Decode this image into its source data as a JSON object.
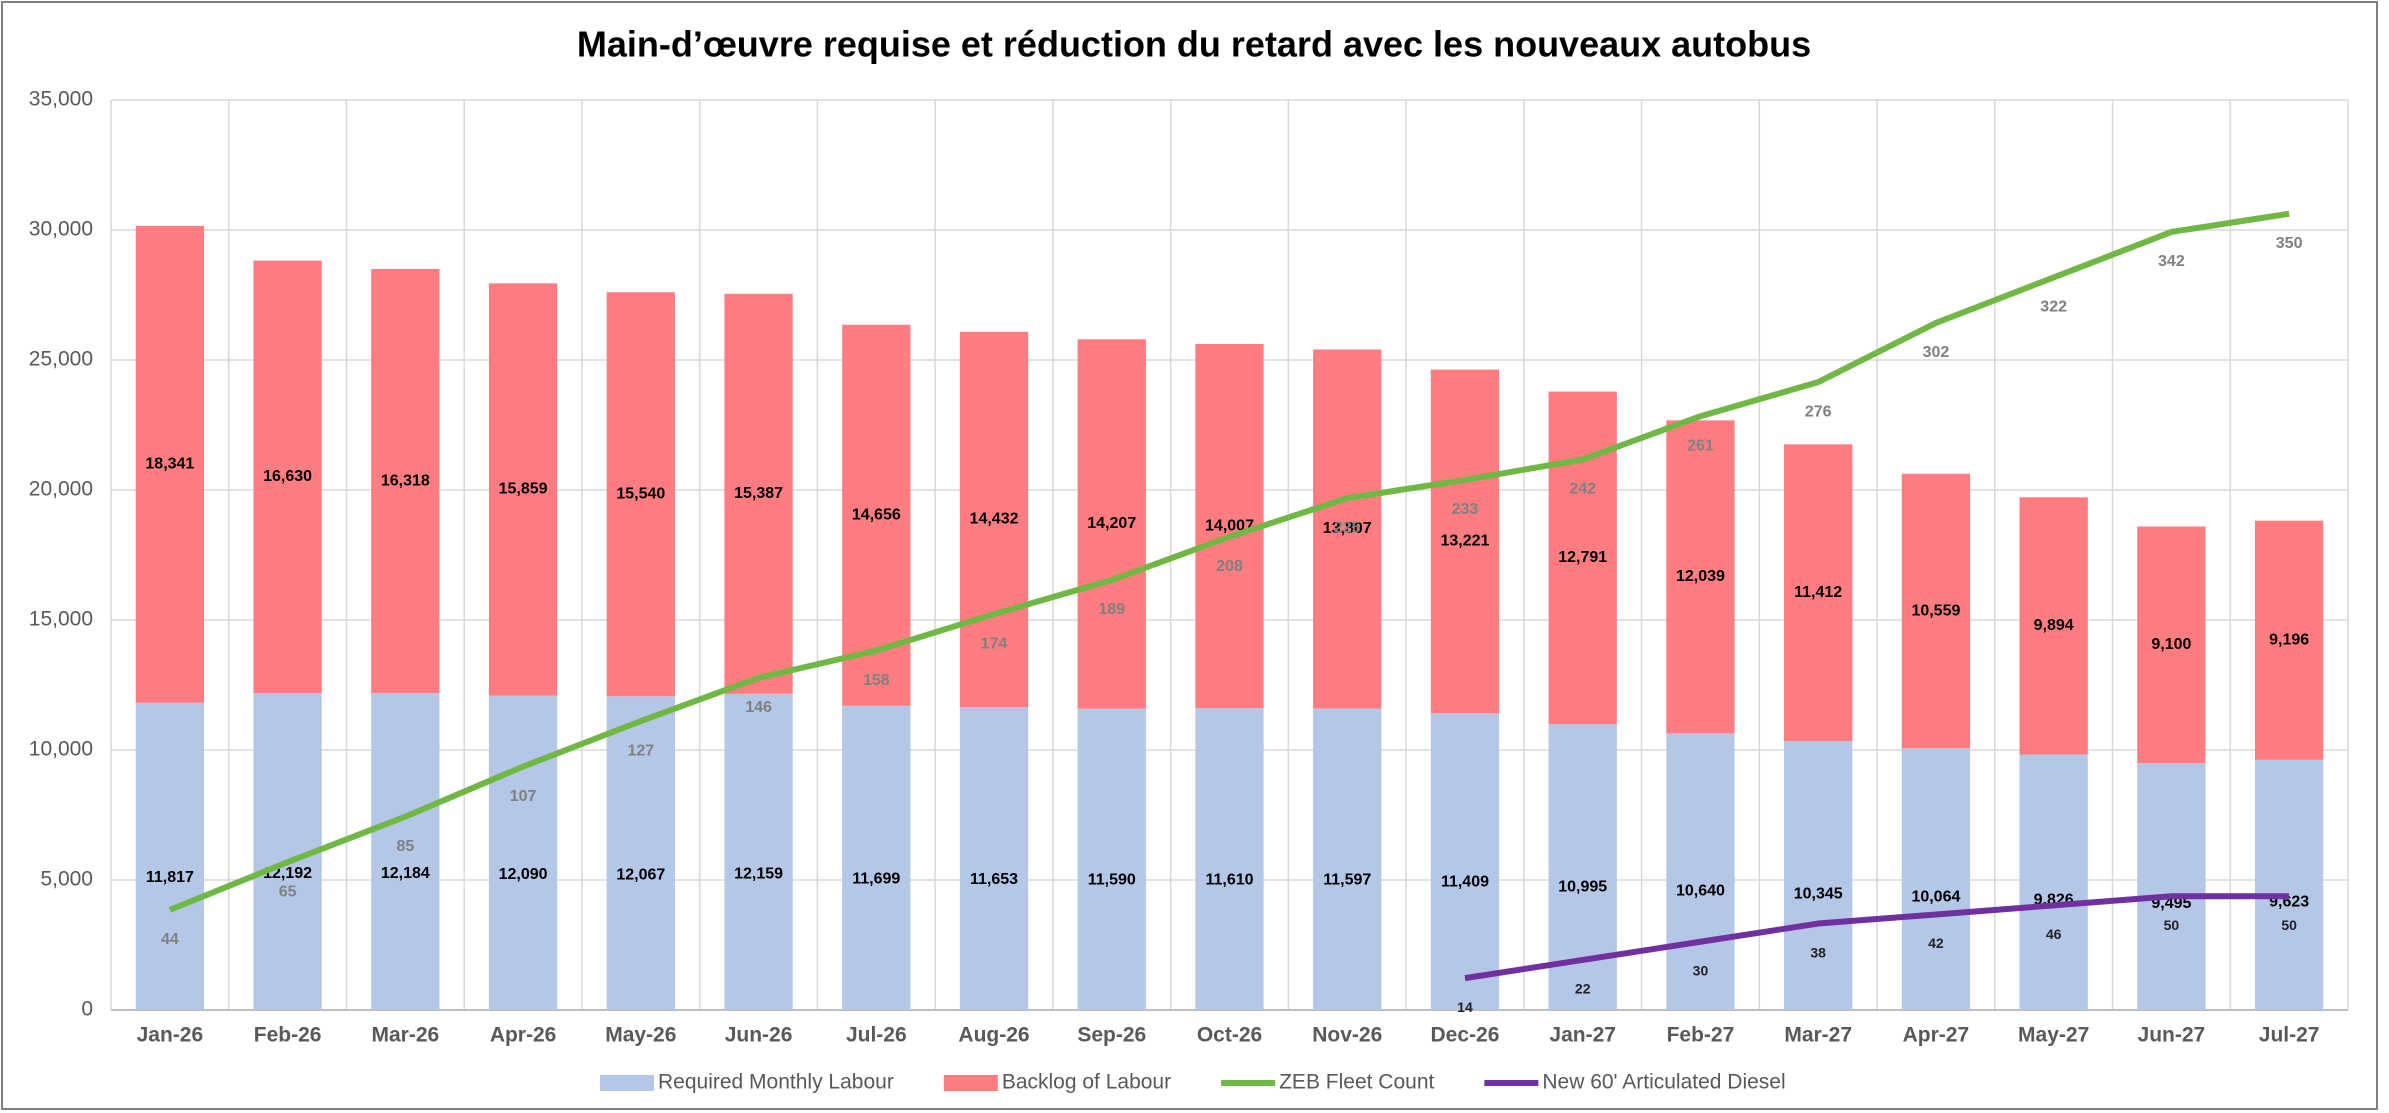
{
  "chart_data": {
    "type": "stacked-bar-line",
    "title": "Main-d’œuvre requise et réduction du retard avec les nouveaux autobus",
    "categories": [
      "Jan-26",
      "Feb-26",
      "Mar-26",
      "Apr-26",
      "May-26",
      "Jun-26",
      "Jul-26",
      "Aug-26",
      "Sep-26",
      "Oct-26",
      "Nov-26",
      "Dec-26",
      "Jan-27",
      "Feb-27",
      "Mar-27",
      "Apr-27",
      "May-27",
      "Jun-27",
      "Jul-27"
    ],
    "series": [
      {
        "name": "Required Monthly Labour",
        "type": "bar",
        "color": "#b4c7e7",
        "values": [
          11817,
          12192,
          12184,
          12090,
          12067,
          12159,
          11699,
          11653,
          11590,
          11610,
          11597,
          11409,
          10995,
          10640,
          10345,
          10064,
          9826,
          9495,
          9623
        ],
        "value_labels": [
          "11,817",
          "12,192",
          "12,184",
          "12,090",
          "12,067",
          "12,159",
          "11,699",
          "11,653",
          "11,590",
          "11,610",
          "11,597",
          "11,409",
          "10,995",
          "10,640",
          "10,345",
          "10,064",
          "9,826",
          "9,495",
          "9,623"
        ]
      },
      {
        "name": "Backlog of Labour",
        "type": "bar",
        "color": "#ff7c80",
        "values": [
          18341,
          16630,
          16318,
          15859,
          15540,
          15387,
          14656,
          14432,
          14207,
          14007,
          13807,
          13221,
          12791,
          12039,
          11412,
          10559,
          9894,
          9100,
          9196
        ],
        "value_labels": [
          "18,341",
          "16,630",
          "16,318",
          "15,859",
          "15,540",
          "15,387",
          "14,656",
          "14,432",
          "14,207",
          "14,007",
          "13,807",
          "13,221",
          "12,791",
          "12,039",
          "11,412",
          "10,559",
          "9,894",
          "9,100",
          "9,196"
        ]
      },
      {
        "name": "ZEB Fleet Count",
        "type": "line",
        "axis": "y2",
        "color": "#70b844",
        "values": [
          44,
          65,
          85,
          107,
          127,
          146,
          158,
          174,
          189,
          208,
          225,
          233,
          242,
          261,
          276,
          302,
          322,
          342,
          350
        ]
      },
      {
        "name": "New 60' Articulated Diesel",
        "type": "line",
        "axis": "y2",
        "color": "#7030a0",
        "values": [
          null,
          null,
          null,
          null,
          null,
          null,
          null,
          null,
          null,
          null,
          null,
          14,
          22,
          30,
          38,
          42,
          46,
          50,
          50
        ]
      }
    ],
    "ylim": [
      0,
      35000
    ],
    "yticks": [
      0,
      {
        "value": 5000,
        "label": "5,000"
      },
      {
        "value": 10000,
        "label": "10,000"
      },
      {
        "value": 15000,
        "label": "15,000"
      },
      {
        "value": 20000,
        "label": "20,000"
      },
      {
        "value": 25000,
        "label": "25,000"
      },
      {
        "value": 30000,
        "label": "30,000"
      },
      {
        "value": 35000,
        "label": "35,000"
      }
    ],
    "y2lim": [
      0,
      400
    ],
    "grid": true,
    "legend": "bottom"
  }
}
